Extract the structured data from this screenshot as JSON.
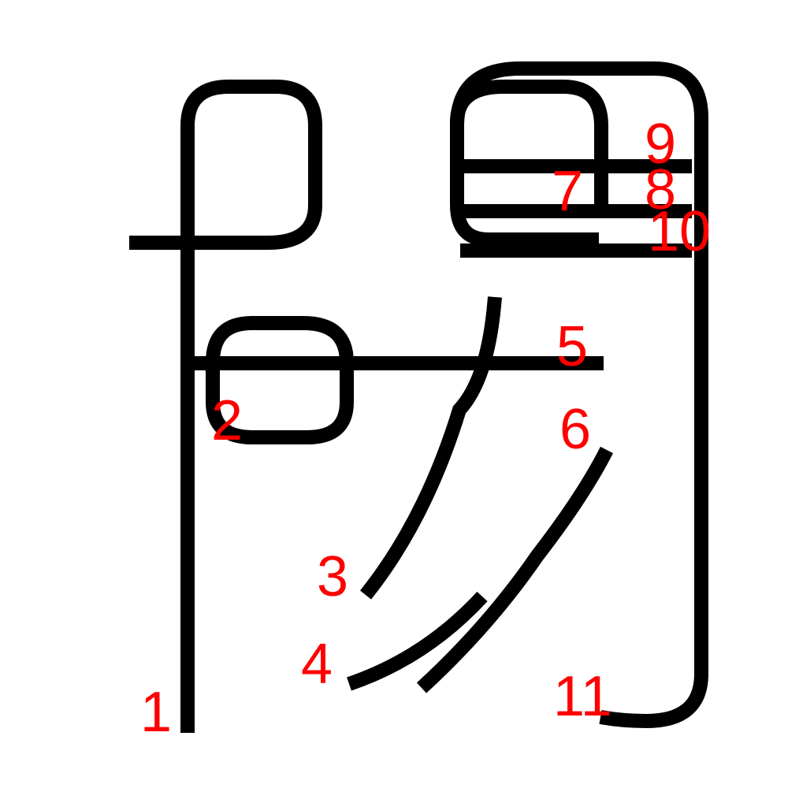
{
  "colors": {
    "stroke": "#000000",
    "label": "#ff0000",
    "background": "#ffffff"
  },
  "stroke_labels": [
    "1",
    "2",
    "3",
    "4",
    "5",
    "6",
    "7",
    "8",
    "9",
    "10",
    "11"
  ]
}
